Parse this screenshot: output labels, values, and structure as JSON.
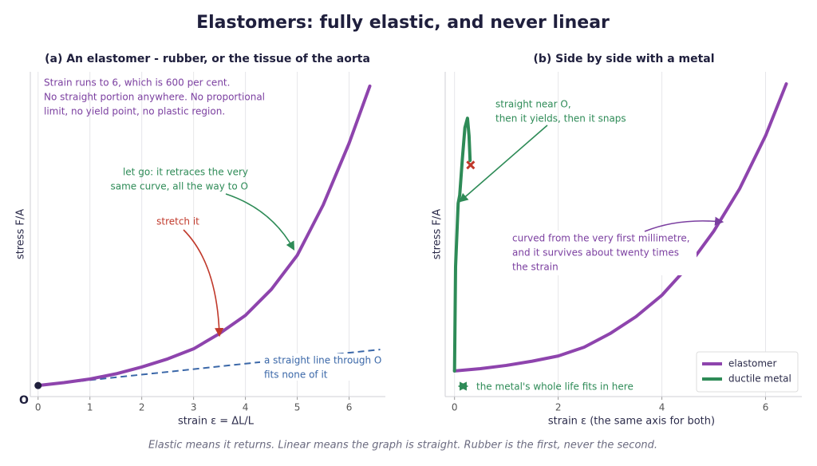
{
  "title": "Elastomers: fully elastic, and never linear",
  "footer": "Elastic means it returns. Linear means the graph is straight. Rubber is the first, never the second.",
  "chart_data": [
    {
      "type": "line",
      "title": "(a) An elastomer - rubber, or the tissue of the aorta",
      "x_label": "strain  ε = ΔL/L",
      "y_label": "stress   F/A",
      "origin_label": "O",
      "xlim": [
        -0.15,
        6.7
      ],
      "ylim": [
        0,
        100
      ],
      "xticks": [
        0,
        1,
        2,
        3,
        4,
        5,
        6
      ],
      "grid": true,
      "series": [
        {
          "color": "#8e44ad",
          "x": [
            0,
            0.5,
            1,
            1.5,
            2,
            2.5,
            3,
            3.5,
            4,
            4.5,
            5,
            5.5,
            6,
            6.4
          ],
          "values": [
            3.4,
            4.3,
            5.4,
            7,
            9.1,
            11.6,
            14.7,
            19.4,
            25,
            33,
            43.5,
            59,
            78,
            95.6
          ]
        }
      ],
      "reference_line": {
        "color": "#3a67a8",
        "x": [
          0,
          6.6
        ],
        "values": [
          3.4,
          14.5
        ]
      },
      "annotations": [
        {
          "color": "#7b3fa0",
          "lines": [
            "Strain runs to 6, which is 600 per cent.",
            "No straight portion anywhere. No proportional",
            "limit, no yield point, no plastic region."
          ]
        },
        {
          "color": "#2e8b57",
          "lines": [
            "let go: it retraces the very",
            "same curve, all the way to O"
          ]
        },
        {
          "color": "#c0392b",
          "lines": [
            "stretch it"
          ]
        },
        {
          "color": "#3a67a8",
          "lines": [
            "a straight line through O",
            "fits none of it"
          ]
        }
      ]
    },
    {
      "type": "line",
      "title": "(b) Side by side with a metal",
      "x_label": "strain  ε   (the same axis for both)",
      "y_label": "stress   F/A",
      "xlim": [
        -0.18,
        6.7
      ],
      "ylim": [
        0,
        100
      ],
      "xticks": [
        0,
        2,
        4,
        6
      ],
      "grid": true,
      "legend": "lower right",
      "series": [
        {
          "name": "elastomer",
          "color": "#8e44ad",
          "x": [
            0,
            0.5,
            1,
            1.5,
            2,
            2.5,
            3,
            3.5,
            4,
            4.5,
            5,
            5.5,
            6,
            6.4
          ],
          "values": [
            7.9,
            8.6,
            9.6,
            10.9,
            12.5,
            15.2,
            19.4,
            24.6,
            31.2,
            40,
            50.9,
            64,
            80.3,
            96.3
          ]
        },
        {
          "name": "ductile metal",
          "color": "#2e8b57",
          "x": [
            0,
            0.02,
            0.07,
            0.1,
            0.15,
            0.2,
            0.25,
            0.28,
            0.3
          ],
          "values": [
            7.9,
            40,
            59.5,
            62,
            73,
            82.8,
            85.7,
            80.3,
            72.7
          ]
        }
      ],
      "fracture": {
        "x": 0.31,
        "value": 71.3,
        "color": "#c0392b"
      },
      "annotations": [
        {
          "color": "#2e8b57",
          "lines": [
            "straight near O,",
            "then it yields, then it snaps"
          ]
        },
        {
          "color": "#7b3fa0",
          "lines": [
            "curved from the very first millimetre,",
            "and it survives about twenty times",
            "the strain"
          ]
        },
        {
          "color": "#2e8b57",
          "lines": [
            "the metal's whole life fits in here"
          ]
        }
      ]
    }
  ]
}
